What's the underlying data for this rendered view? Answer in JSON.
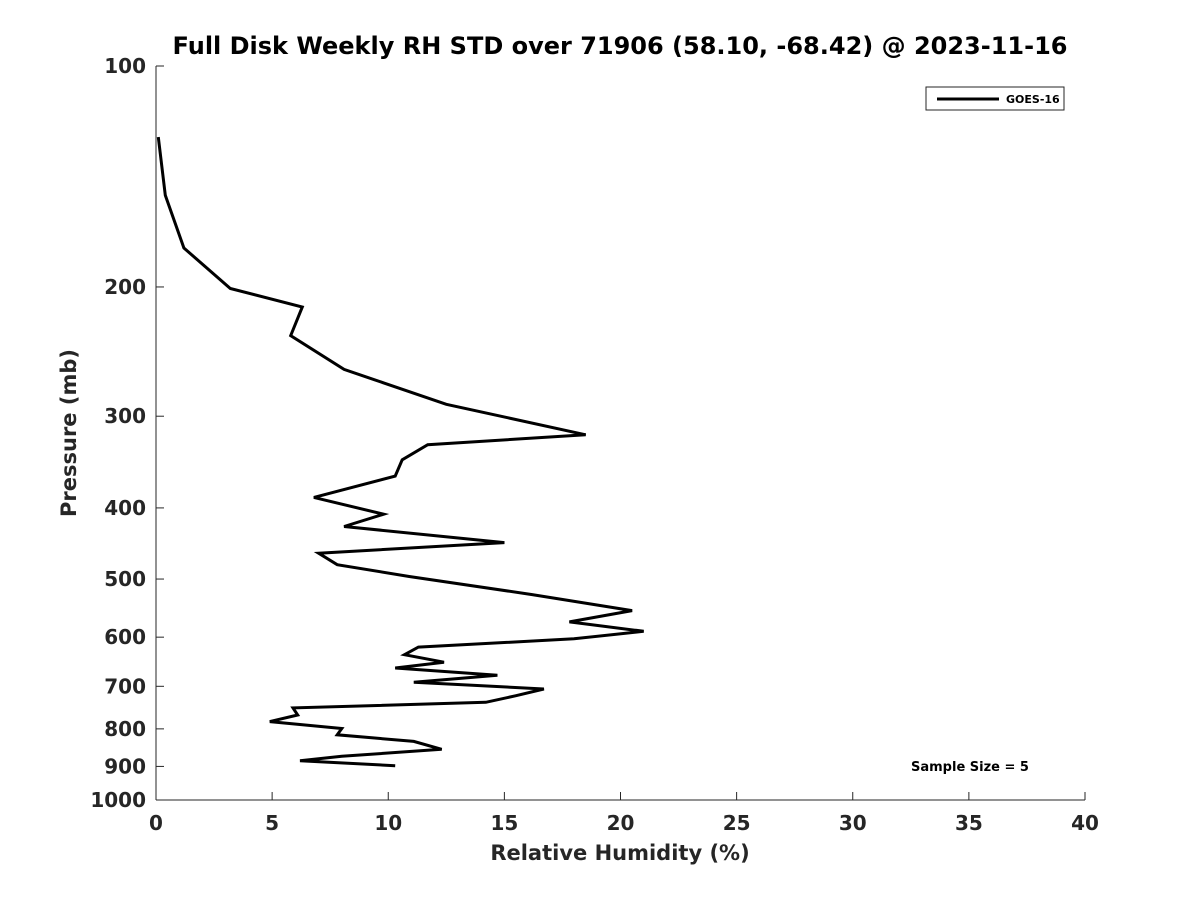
{
  "chart_data": {
    "type": "line",
    "title": "Full Disk Weekly RH STD over 71906 (58.10, -68.42) @ 2023-11-16",
    "xlabel": "Relative Humidity (%)",
    "ylabel": "Pressure (mb)",
    "xlim": [
      0,
      40
    ],
    "ylim": [
      1000,
      100
    ],
    "yscale": "log",
    "xticks": [
      0,
      5,
      10,
      15,
      20,
      25,
      30,
      35,
      40
    ],
    "xtick_labels": [
      "0",
      "5",
      "10",
      "15",
      "20",
      "25",
      "30",
      "35",
      "40"
    ],
    "yticks": [
      100,
      200,
      300,
      400,
      500,
      600,
      700,
      800,
      900,
      1000
    ],
    "ytick_labels": [
      "100",
      "200",
      "300",
      "400",
      "500",
      "600",
      "700",
      "800",
      "900",
      "1000"
    ],
    "grid": false,
    "legend_position": "top-right",
    "series": [
      {
        "name": "GOES-16",
        "color": "#000000",
        "points": [
          [
            0.1,
            125
          ],
          [
            0.4,
            150
          ],
          [
            1.2,
            177
          ],
          [
            3.2,
            201
          ],
          [
            6.3,
            213
          ],
          [
            5.8,
            233
          ],
          [
            8.1,
            259
          ],
          [
            12.5,
            289
          ],
          [
            18.5,
            318
          ],
          [
            11.7,
            328
          ],
          [
            10.6,
            344
          ],
          [
            10.3,
            362
          ],
          [
            6.8,
            387
          ],
          [
            9.8,
            408
          ],
          [
            8.1,
            424
          ],
          [
            15.0,
            446
          ],
          [
            7.0,
            461
          ],
          [
            7.8,
            478
          ],
          [
            10.9,
            496
          ],
          [
            16.2,
            525
          ],
          [
            20.5,
            552
          ],
          [
            17.8,
            572
          ],
          [
            21.0,
            589
          ],
          [
            18.0,
            603
          ],
          [
            11.3,
            619
          ],
          [
            10.7,
            634
          ],
          [
            12.4,
            649
          ],
          [
            10.3,
            661
          ],
          [
            14.7,
            676
          ],
          [
            11.1,
            691
          ],
          [
            16.7,
            706
          ],
          [
            15.5,
            721
          ],
          [
            14.2,
            736
          ],
          [
            5.9,
            749
          ],
          [
            6.1,
            766
          ],
          [
            4.9,
            782
          ],
          [
            8.0,
            799
          ],
          [
            7.8,
            815
          ],
          [
            11.1,
            832
          ],
          [
            12.3,
            853
          ],
          [
            8.0,
            872
          ],
          [
            6.2,
            884
          ],
          [
            10.3,
            898
          ]
        ]
      }
    ],
    "annotation": "Sample Size = 5"
  },
  "legend": {
    "entries": [
      "GOES-16"
    ]
  }
}
